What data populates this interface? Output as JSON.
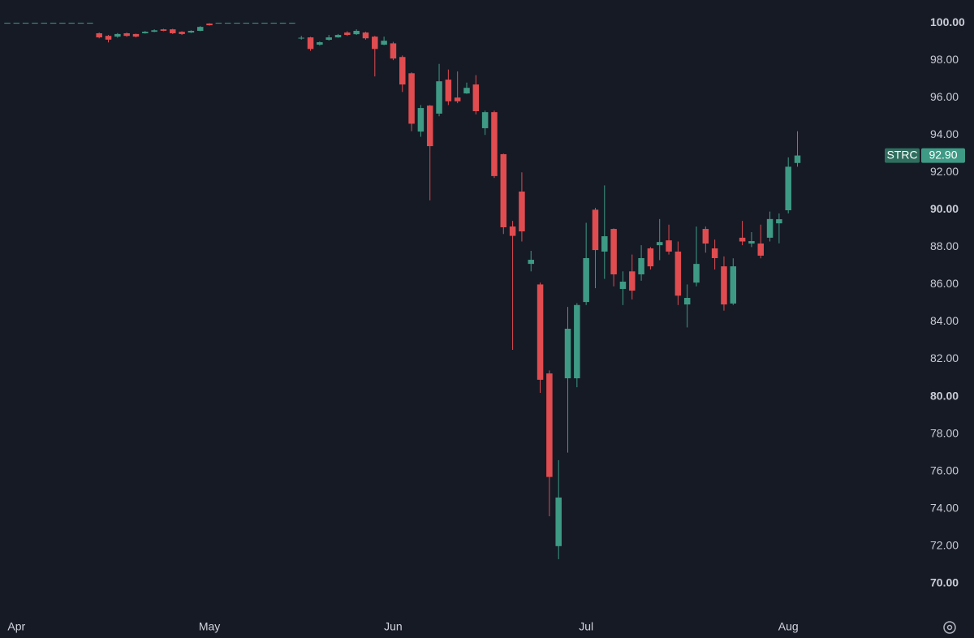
{
  "chart_data": {
    "type": "candlestick",
    "categories": [
      null,
      "Apr",
      null,
      null,
      null,
      null,
      null,
      null,
      null,
      null,
      null,
      null,
      null,
      null,
      null,
      null,
      null,
      null,
      null,
      null,
      null,
      null,
      "May",
      null,
      null,
      null,
      null,
      null,
      null,
      null,
      null,
      null,
      null,
      null,
      null,
      null,
      null,
      null,
      null,
      null,
      null,
      null,
      "Jun",
      null,
      null,
      null,
      null,
      null,
      null,
      null,
      null,
      null,
      null,
      null,
      null,
      null,
      null,
      null,
      null,
      null,
      null,
      null,
      null,
      "Jul",
      null,
      null,
      null,
      null,
      null,
      null,
      null,
      null,
      null,
      null,
      null,
      null,
      null,
      null,
      null,
      null,
      null,
      null,
      null,
      null,
      null,
      "Aug",
      null
    ],
    "open": [
      100,
      100,
      100,
      100,
      100,
      100,
      100,
      100,
      100,
      100,
      99.44,
      99.3,
      99.26,
      99.44,
      99.4,
      99.44,
      99.52,
      99.65,
      99.65,
      99.52,
      99.48,
      99.57,
      99.96,
      100,
      100,
      100,
      100,
      100,
      100,
      100,
      100,
      100,
      99.2,
      99.22,
      98.83,
      99.09,
      99.22,
      99.48,
      99.39,
      99.48,
      99.26,
      98.83,
      98.9,
      98.17,
      97.3,
      94.18,
      95.57,
      95.14,
      96.96,
      96.0,
      96.22,
      96.7,
      94.36,
      95.22,
      92.97,
      89.1,
      90.97,
      87.1,
      86.0,
      81.24,
      72.0,
      80.98,
      80.98,
      85.06,
      90.0,
      87.76,
      88.97,
      85.76,
      86.7,
      86.54,
      87.93,
      88.1,
      88.36,
      87.76,
      84.93,
      86.1,
      88.97,
      87.93,
      86.97,
      84.98,
      88.5,
      88.19,
      88.19,
      88.5,
      89.27,
      89.97,
      92.5
    ],
    "high": [
      100,
      100,
      100,
      100,
      100,
      100,
      100,
      100,
      100,
      100,
      99.48,
      99.35,
      99.45,
      99.48,
      99.42,
      99.56,
      99.65,
      99.68,
      99.68,
      99.55,
      99.6,
      99.82,
      99.98,
      100,
      100,
      100,
      100,
      100,
      100,
      100,
      100,
      100,
      99.3,
      99.25,
      99.0,
      99.35,
      99.4,
      99.55,
      99.65,
      99.52,
      99.3,
      99.26,
      98.98,
      98.25,
      97.35,
      95.6,
      95.6,
      97.8,
      97.5,
      97.4,
      96.8,
      97.2,
      95.3,
      95.3,
      93.0,
      89.4,
      92.0,
      87.8,
      86.1,
      81.4,
      76.6,
      84.8,
      85.0,
      89.3,
      90.1,
      91.3,
      89.0,
      86.7,
      87.6,
      88.1,
      88.0,
      89.5,
      89.2,
      88.3,
      86.0,
      89.1,
      89.1,
      88.4,
      87.5,
      87.4,
      89.4,
      88.8,
      89.2,
      89.9,
      89.8,
      92.8,
      94.2
    ],
    "low": [
      100,
      100,
      100,
      100,
      100,
      100,
      100,
      100,
      100,
      100,
      99.17,
      98.95,
      99.2,
      99.25,
      99.22,
      99.42,
      99.5,
      99.55,
      99.4,
      99.35,
      99.45,
      99.55,
      99.85,
      100,
      100,
      100,
      100,
      100,
      100,
      100,
      100,
      100,
      99.1,
      98.5,
      98.78,
      99.05,
      99.2,
      99.3,
      99.35,
      99.1,
      97.13,
      98.8,
      98.0,
      96.3,
      94.2,
      93.9,
      90.5,
      95.0,
      95.6,
      95.7,
      96.2,
      95.1,
      94.0,
      91.7,
      88.7,
      82.5,
      88.3,
      86.7,
      80.2,
      73.6,
      71.3,
      77.0,
      80.5,
      84.9,
      85.8,
      86.3,
      85.9,
      84.9,
      85.2,
      86.2,
      86.8,
      87.3,
      87.6,
      84.9,
      83.7,
      85.9,
      87.7,
      86.8,
      84.6,
      84.9,
      88.1,
      88.0,
      87.4,
      88.3,
      88.2,
      89.8,
      92.3
    ],
    "close": [
      100,
      100,
      100,
      100,
      100,
      100,
      100,
      100,
      100,
      100,
      99.22,
      99.1,
      99.4,
      99.3,
      99.26,
      99.52,
      99.6,
      99.57,
      99.44,
      99.4,
      99.57,
      99.78,
      99.87,
      100,
      100,
      100,
      100,
      100,
      100,
      100,
      100,
      100,
      99.2,
      98.6,
      98.96,
      99.22,
      99.35,
      99.35,
      99.57,
      99.17,
      98.6,
      99.04,
      98.09,
      96.7,
      94.6,
      95.44,
      93.4,
      96.87,
      95.8,
      95.8,
      96.52,
      95.27,
      95.22,
      91.8,
      89.06,
      88.6,
      88.84,
      87.32,
      80.9,
      75.7,
      74.6,
      83.63,
      84.9,
      87.41,
      87.84,
      88.58,
      86.54,
      86.15,
      85.67,
      87.41,
      86.97,
      88.27,
      87.76,
      85.4,
      85.28,
      87.1,
      88.19,
      87.41,
      84.93,
      86.97,
      88.3,
      88.32,
      87.54,
      89.5,
      89.49,
      92.3,
      92.9
    ],
    "up_color": "#3e9a84",
    "down_color": "#e04c50",
    "ylim": [
      68.43,
      101.22
    ],
    "yticks": [
      {
        "value": 70,
        "label": "70.00"
      },
      {
        "value": 72,
        "label": "72.00"
      },
      {
        "value": 74,
        "label": "74.00"
      },
      {
        "value": 76,
        "label": "76.00"
      },
      {
        "value": 78,
        "label": "78.00"
      },
      {
        "value": 80,
        "label": "80.00"
      },
      {
        "value": 82,
        "label": "82.00"
      },
      {
        "value": 84,
        "label": "84.00"
      },
      {
        "value": 86,
        "label": "86.00"
      },
      {
        "value": 88,
        "label": "88.00"
      },
      {
        "value": 90,
        "label": "90.00"
      },
      {
        "value": 92,
        "label": "92.00"
      },
      {
        "value": 94,
        "label": "94.00"
      },
      {
        "value": 96,
        "label": "96.00"
      },
      {
        "value": 98,
        "label": "98.00"
      },
      {
        "value": 100,
        "label": "100.00"
      }
    ],
    "price_tag": {
      "name": "STRC",
      "value": 92.9,
      "label": "92.90"
    }
  }
}
